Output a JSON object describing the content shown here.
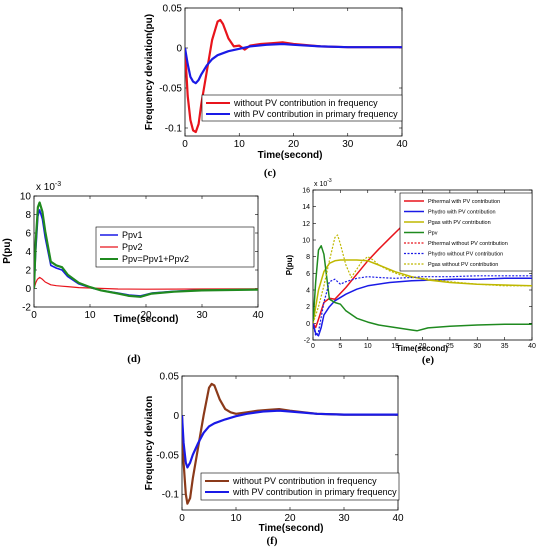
{
  "chart_data": [
    {
      "id": "c",
      "type": "line",
      "caption": "(c)",
      "xlabel": "Time(second)",
      "ylabel": "Frequency deviation(pu)",
      "xlim": [
        0,
        40
      ],
      "ylim": [
        -0.11,
        0.05
      ],
      "xticks": [
        0,
        10,
        20,
        30,
        40
      ],
      "yticks": [
        -0.1,
        -0.05,
        0,
        0.05
      ],
      "ytick_labels": [
        "-0.1",
        "-0.05",
        "0",
        "0.05"
      ],
      "legend_position": "lower-center",
      "series": [
        {
          "name": "without PV contribution in frequency",
          "color": "#e8141c",
          "width": 2.2,
          "dash": "",
          "x": [
            0,
            0.5,
            1,
            1.5,
            2,
            2.5,
            3,
            4,
            5,
            6,
            6.5,
            7,
            8,
            9,
            10,
            11,
            12,
            14,
            16,
            18,
            20,
            25,
            30,
            40
          ],
          "y": [
            0,
            -0.06,
            -0.09,
            -0.103,
            -0.105,
            -0.095,
            -0.07,
            -0.03,
            0.01,
            0.033,
            0.035,
            0.03,
            0.012,
            0.002,
            0.003,
            -0.002,
            0.003,
            0.005,
            0.006,
            0.007,
            0.005,
            0.002,
            0.001,
            0.001
          ]
        },
        {
          "name": "with PV contribution in primary frequency",
          "color": "#1a1ae6",
          "width": 2.2,
          "dash": "",
          "x": [
            0,
            0.5,
            1,
            1.5,
            2,
            2.5,
            3,
            4,
            5,
            6,
            8,
            10,
            12,
            15,
            18,
            20,
            25,
            30,
            40
          ],
          "y": [
            0,
            -0.02,
            -0.036,
            -0.042,
            -0.044,
            -0.04,
            -0.033,
            -0.022,
            -0.014,
            -0.009,
            -0.004,
            -0.001,
            0.002,
            0.004,
            0.005,
            0.004,
            0.002,
            0.001,
            0.001
          ]
        }
      ]
    },
    {
      "id": "d",
      "type": "line",
      "caption": "(d)",
      "xlabel": "Time(second)",
      "ylabel": "P(pu)",
      "exponent_label": "x 10",
      "exponent_power": "-3",
      "xlim": [
        0,
        40
      ],
      "ylim": [
        -2,
        10
      ],
      "xticks": [
        0,
        10,
        20,
        30,
        40
      ],
      "yticks": [
        -2,
        0,
        2,
        4,
        6,
        8,
        10
      ],
      "ytick_labels": [
        "-2",
        "0",
        "2",
        "4",
        "6",
        "8",
        "10"
      ],
      "legend_position": "top-right",
      "series": [
        {
          "name": "Ppv1",
          "color": "#1a1ae6",
          "width": 1.6,
          "dash": "",
          "x": [
            0,
            0.3,
            0.7,
            1,
            1.5,
            2,
            3,
            4,
            5,
            6,
            8,
            10,
            12,
            15,
            17,
            19,
            21,
            25,
            30,
            40
          ],
          "y": [
            0,
            4,
            7.8,
            8.5,
            7.5,
            5.5,
            2.5,
            2.2,
            2.0,
            1.3,
            0.5,
            0.1,
            -0.2,
            -0.5,
            -0.7,
            -0.8,
            -0.5,
            -0.3,
            -0.15,
            -0.1
          ]
        },
        {
          "name": "Ppv2",
          "color": "#e8141c",
          "width": 1.2,
          "dash": "",
          "x": [
            0,
            0.3,
            0.6,
            1,
            1.5,
            2,
            3,
            4,
            5,
            6,
            8,
            10,
            15,
            20,
            30,
            40
          ],
          "y": [
            0,
            0.6,
            1.0,
            1.2,
            1.0,
            0.7,
            0.4,
            0.3,
            0.25,
            0.2,
            0.1,
            0.05,
            -0.05,
            -0.08,
            -0.05,
            -0.03
          ]
        },
        {
          "name": "Ppv=Ppv1+Ppv2",
          "color": "#1f8a1f",
          "width": 2.2,
          "dash": "",
          "x": [
            0,
            0.3,
            0.7,
            1,
            1.5,
            2,
            3,
            4,
            5,
            6,
            8,
            10,
            12,
            15,
            17,
            19,
            21,
            25,
            30,
            40
          ],
          "y": [
            0,
            5,
            8.8,
            9.3,
            8.3,
            6.2,
            2.9,
            2.5,
            2.3,
            1.5,
            0.6,
            0.15,
            -0.2,
            -0.55,
            -0.8,
            -0.9,
            -0.55,
            -0.35,
            -0.2,
            -0.12
          ]
        }
      ]
    },
    {
      "id": "e",
      "type": "line",
      "caption": "(e)",
      "xlabel": "Time(second)",
      "ylabel": "P(pu)",
      "exponent_label": "x 10",
      "exponent_power": "-3",
      "xlim": [
        0,
        40
      ],
      "ylim": [
        -2,
        16
      ],
      "xticks": [
        0,
        5,
        10,
        15,
        20,
        25,
        30,
        35,
        40
      ],
      "yticks": [
        -2,
        0,
        2,
        4,
        6,
        8,
        10,
        12,
        14,
        16
      ],
      "ytick_labels": [
        "-2",
        "0",
        "2",
        "4",
        "6",
        "8",
        "10",
        "12",
        "14",
        "16"
      ],
      "legend_position": "top-right",
      "series": [
        {
          "name": "Pthermal with PV contribution",
          "color": "#e8141c",
          "width": 1.5,
          "dash": "",
          "x": [
            0,
            0.5,
            1,
            2,
            3,
            4,
            6,
            8,
            10,
            12,
            14,
            16,
            18,
            19
          ],
          "y": [
            0,
            -0.5,
            0.5,
            2.5,
            3.0,
            2.9,
            4.3,
            5.9,
            7.5,
            8.9,
            10.2,
            11.5,
            12.2,
            12.2
          ]
        },
        {
          "name": "Phydro with PV contribution",
          "color": "#1a1ae6",
          "width": 1.5,
          "dash": "",
          "x": [
            0,
            0.5,
            1,
            1.5,
            2,
            3,
            4,
            6,
            8,
            10,
            14,
            18,
            22,
            26,
            30,
            35,
            40
          ],
          "y": [
            0,
            -1.2,
            -1.5,
            -0.5,
            1.0,
            2.0,
            2.7,
            3.5,
            4.1,
            4.5,
            4.9,
            5.1,
            5.2,
            5.3,
            5.3,
            5.4,
            5.4
          ]
        },
        {
          "name": "Pgas with PV contribution",
          "color": "#bfb800",
          "width": 1.5,
          "dash": "",
          "x": [
            0,
            1,
            2,
            3,
            4,
            5,
            6,
            8,
            10,
            12,
            15,
            18,
            21,
            25,
            30,
            35,
            40
          ],
          "y": [
            0,
            4.0,
            6.2,
            7.2,
            7.5,
            7.6,
            7.6,
            7.6,
            7.5,
            7.0,
            6.2,
            5.6,
            5.2,
            4.9,
            4.7,
            4.6,
            4.5
          ]
        },
        {
          "name": "Ppv",
          "color": "#1f8a1f",
          "width": 1.5,
          "dash": "",
          "x": [
            0,
            0.5,
            1,
            1.5,
            2,
            3,
            4,
            5,
            6,
            8,
            10,
            12,
            15,
            18,
            19,
            21,
            25,
            30,
            35,
            40
          ],
          "y": [
            0,
            5,
            8.8,
            9.3,
            8.3,
            2.9,
            2.5,
            2.3,
            1.5,
            0.6,
            0.15,
            -0.2,
            -0.5,
            -0.8,
            -0.9,
            -0.55,
            -0.35,
            -0.2,
            -0.12,
            -0.1
          ]
        },
        {
          "name": "Pthermal without PV contribution",
          "color": "#e8141c",
          "width": 1.2,
          "dash": "2,1.5",
          "x": [
            39.4,
            40
          ],
          "y": [
            10.0,
            10.0
          ]
        },
        {
          "name": "Phydro without PV contribution",
          "color": "#1a1ae6",
          "width": 1.2,
          "dash": "2,1.5",
          "x": [
            0,
            0.5,
            1,
            2,
            3,
            4,
            5,
            6,
            8,
            10,
            12,
            15,
            18,
            20,
            25,
            30,
            35,
            40
          ],
          "y": [
            0,
            -1.5,
            -1.0,
            2.5,
            5.0,
            5.3,
            4.7,
            5.0,
            5.4,
            5.6,
            5.5,
            5.4,
            5.5,
            5.6,
            5.6,
            5.7,
            5.7,
            5.7
          ]
        },
        {
          "name": "Pgas without PV contribution",
          "color": "#bfb800",
          "width": 1.2,
          "dash": "2,1.5",
          "x": [
            0,
            1,
            2,
            3,
            4,
            4.5,
            5,
            6,
            7,
            8,
            9,
            10,
            11,
            12,
            14,
            16,
            18,
            20,
            25,
            30,
            35,
            40
          ],
          "y": [
            0,
            2.0,
            4.5,
            7.5,
            10.3,
            10.6,
            9.5,
            7.0,
            5.5,
            6.5,
            7.5,
            8.0,
            7.6,
            7.0,
            6.3,
            5.8,
            5.5,
            5.4,
            5.0,
            4.7,
            4.5,
            4.5
          ]
        }
      ]
    },
    {
      "id": "f",
      "type": "line",
      "caption": "(f)",
      "xlabel": "Time(second)",
      "ylabel": "Frequency deviaton",
      "xlim": [
        0,
        40
      ],
      "ylim": [
        -0.12,
        0.05
      ],
      "xticks": [
        0,
        10,
        20,
        30,
        40
      ],
      "yticks": [
        -0.1,
        -0.05,
        0,
        0.05
      ],
      "ytick_labels": [
        "-0.1",
        "-0.05",
        "0",
        "0.05"
      ],
      "legend_position": "lower-center",
      "series": [
        {
          "name": "without PV contribution in frequency",
          "color": "#8b3a1a",
          "width": 2.2,
          "dash": "",
          "x": [
            0,
            0.3,
            0.7,
            1,
            1.5,
            2,
            3,
            4,
            5,
            5.5,
            6,
            7,
            8,
            9,
            10,
            12,
            14,
            16,
            18,
            20,
            25,
            30,
            40
          ],
          "y": [
            0,
            -0.06,
            -0.1,
            -0.112,
            -0.105,
            -0.08,
            -0.04,
            0.0,
            0.035,
            0.04,
            0.038,
            0.02,
            0.008,
            0.004,
            0.002,
            0.004,
            0.006,
            0.007,
            0.008,
            0.006,
            0.002,
            0.001,
            0.001
          ]
        },
        {
          "name": "with PV contribution in primary frequency",
          "color": "#1a1ae6",
          "width": 2.2,
          "dash": "",
          "x": [
            0,
            0.3,
            0.7,
            1,
            1.5,
            2,
            3,
            4,
            5,
            6,
            8,
            10,
            12,
            15,
            18,
            20,
            25,
            30,
            40
          ],
          "y": [
            0,
            -0.035,
            -0.06,
            -0.066,
            -0.06,
            -0.05,
            -0.035,
            -0.022,
            -0.014,
            -0.01,
            -0.005,
            -0.001,
            0.002,
            0.005,
            0.006,
            0.005,
            0.002,
            0.001,
            0.001
          ]
        }
      ]
    }
  ]
}
